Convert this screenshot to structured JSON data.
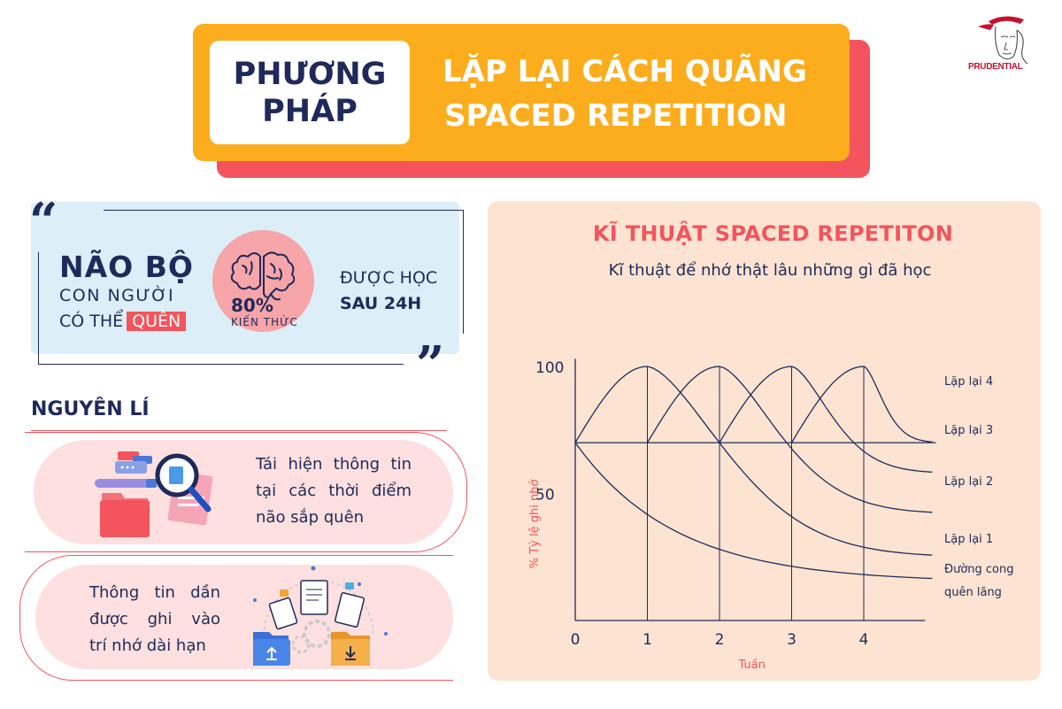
{
  "header": {
    "method_line1": "PHƯƠNG",
    "method_line2": "PHÁP",
    "title_line1": "LẶP LẠI CÁCH QUÃNG",
    "title_line2": "SPACED REPETITION"
  },
  "logo": {
    "text": "PRUDENTIAL",
    "icon": "prudential-logo-icon"
  },
  "quote": {
    "open_mark": "“",
    "close_mark": "”",
    "title": "NÃO BỘ",
    "line2": "CON NGƯỜI",
    "line3_prefix": "CÓ THỂ",
    "line3_highlight": "QUÊN",
    "percent": "80%",
    "percent_label": "KIẾN THỨC",
    "learned_line1": "ĐƯỢC HỌC",
    "learned_line2": "SAU 24H",
    "icon": "brain-icon"
  },
  "principles": {
    "title": "NGUYÊN LÍ",
    "item1": {
      "line1": "Tái hiện thông tin",
      "line2": "tại các thời điểm",
      "line3": "não sắp quên",
      "icon": "magnifier-folder-icon"
    },
    "item2": {
      "line1": "Thông tin dần",
      "line2": "được ghi vào",
      "line3": "trí nhớ dài hạn",
      "icon": "documents-folders-icon"
    }
  },
  "colors": {
    "navy": "#1f2a5a",
    "red": "#f4545d",
    "orange": "#fcad1d",
    "peach": "#fde4d2",
    "light_blue": "#dceef8"
  },
  "chart_data": {
    "type": "line",
    "title": "KĨ THUẬT SPACED REPETITON",
    "subtitle": "Kĩ thuật để nhớ thật lâu những gì đã học",
    "xlabel": "Tuần",
    "ylabel": "% Tỷ lệ ghi nhớ",
    "xlim": [
      0,
      5
    ],
    "ylim": [
      0,
      100
    ],
    "x_ticks": [
      "0",
      "1",
      "2",
      "3",
      "4"
    ],
    "y_ticks": [
      "50",
      "100"
    ],
    "baseline_y": 70,
    "series": [
      {
        "name": "Đường cong quên lãng",
        "start_x": 0,
        "end_y": 15
      },
      {
        "name": "Lặp lại 1",
        "start_x": 0,
        "peak_x": 1,
        "end_y": 25
      },
      {
        "name": "Lặp lại 2",
        "start_x": 1,
        "peak_x": 2,
        "end_y": 42
      },
      {
        "name": "Lặp lại 3",
        "start_x": 2,
        "peak_x": 3,
        "end_y": 58
      },
      {
        "name": "Lặp lại 4",
        "start_x": 3,
        "peak_x": 4,
        "end_y": 70
      }
    ],
    "legend_labels": [
      "Lặp lại 4",
      "Lặp lại 3",
      "Lặp lại 2",
      "Lặp lại 1",
      "Đường cong",
      "quên lãng"
    ],
    "peak_y": 100,
    "grid": "vertical lines at weeks 1-4",
    "legend": "right"
  }
}
